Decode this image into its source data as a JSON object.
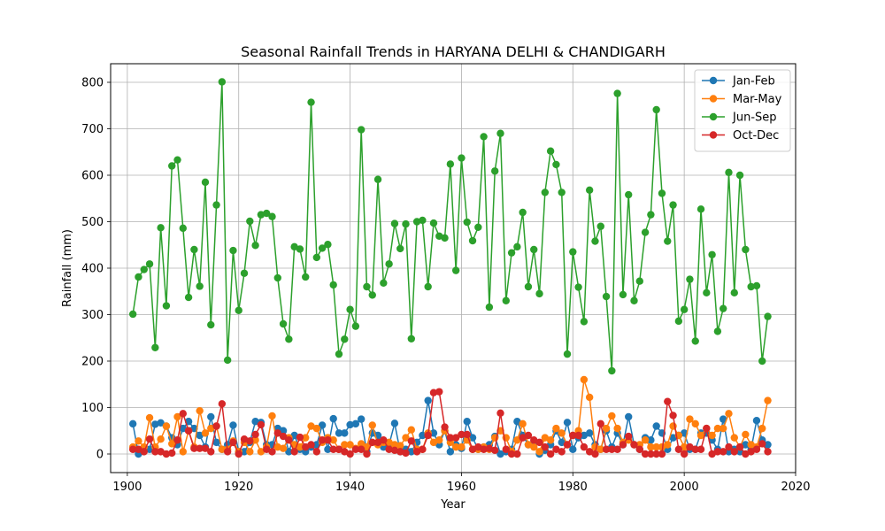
{
  "chart_data": {
    "type": "line",
    "title": "Seasonal Rainfall Trends in HARYANA DELHI & CHANDIGARH",
    "xlabel": "Year",
    "ylabel": "Rainfall (mm)",
    "xlim": [
      1897,
      2020
    ],
    "ylim": [
      -40,
      840
    ],
    "xticks": [
      1900,
      1920,
      1940,
      1960,
      1980,
      2000,
      2020
    ],
    "yticks": [
      0,
      100,
      200,
      300,
      400,
      500,
      600,
      700,
      800
    ],
    "grid": true,
    "legend_position": "top-right",
    "x": [
      1901,
      1902,
      1903,
      1904,
      1905,
      1906,
      1907,
      1908,
      1909,
      1910,
      1911,
      1912,
      1913,
      1914,
      1915,
      1916,
      1917,
      1918,
      1919,
      1920,
      1921,
      1922,
      1923,
      1924,
      1925,
      1926,
      1927,
      1928,
      1929,
      1930,
      1931,
      1932,
      1933,
      1934,
      1935,
      1936,
      1937,
      1938,
      1939,
      1940,
      1941,
      1942,
      1943,
      1944,
      1945,
      1946,
      1947,
      1948,
      1949,
      1950,
      1951,
      1952,
      1953,
      1954,
      1955,
      1956,
      1957,
      1958,
      1959,
      1960,
      1961,
      1962,
      1963,
      1964,
      1965,
      1966,
      1967,
      1968,
      1969,
      1970,
      1971,
      1972,
      1973,
      1974,
      1975,
      1976,
      1977,
      1978,
      1979,
      1980,
      1981,
      1982,
      1983,
      1984,
      1985,
      1986,
      1987,
      1988,
      1989,
      1990,
      1991,
      1992,
      1993,
      1994,
      1995,
      1996,
      1997,
      1998,
      1999,
      2000,
      2001,
      2002,
      2003,
      2004,
      2005,
      2006,
      2007,
      2008,
      2009,
      2010,
      2011,
      2012,
      2013,
      2014,
      2015
    ],
    "series": [
      {
        "name": "Jan-Feb",
        "color": "#1f77b4",
        "values": [
          65,
          0,
          10,
          10,
          64,
          67,
          60,
          35,
          20,
          55,
          70,
          55,
          40,
          15,
          80,
          25,
          10,
          20,
          62,
          5,
          5,
          25,
          70,
          68,
          20,
          20,
          55,
          50,
          5,
          40,
          10,
          5,
          15,
          20,
          62,
          10,
          76,
          45,
          45,
          63,
          65,
          75,
          5,
          45,
          40,
          15,
          20,
          66,
          5,
          10,
          5,
          25,
          40,
          115,
          45,
          20,
          50,
          5,
          20,
          12,
          70,
          35,
          10,
          15,
          20,
          38,
          0,
          5,
          10,
          70,
          40,
          20,
          25,
          0,
          8,
          20,
          50,
          25,
          68,
          10,
          35,
          40,
          45,
          20,
          10,
          50,
          15,
          45,
          20,
          80,
          20,
          10,
          35,
          30,
          60,
          45,
          10,
          35,
          40,
          45,
          10,
          10,
          45,
          45,
          30,
          10,
          75,
          5,
          10,
          5,
          20,
          10,
          72,
          30,
          20
        ]
      },
      {
        "name": "Mar-May",
        "color": "#ff7f0e",
        "values": [
          15,
          28,
          15,
          78,
          15,
          32,
          60,
          22,
          80,
          5,
          50,
          15,
          93,
          45,
          55,
          60,
          10,
          10,
          28,
          5,
          25,
          5,
          30,
          5,
          15,
          82,
          15,
          12,
          35,
          20,
          15,
          35,
          60,
          55,
          25,
          35,
          30,
          10,
          20,
          20,
          12,
          22,
          15,
          62,
          20,
          25,
          25,
          20,
          18,
          35,
          52,
          10,
          10,
          45,
          25,
          30,
          50,
          25,
          15,
          15,
          30,
          10,
          10,
          15,
          10,
          35,
          50,
          35,
          5,
          30,
          65,
          20,
          15,
          5,
          35,
          30,
          55,
          45,
          20,
          40,
          50,
          160,
          122,
          15,
          10,
          55,
          82,
          55,
          25,
          30,
          20,
          20,
          30,
          15,
          15,
          15,
          20,
          60,
          40,
          15,
          75,
          65,
          40,
          55,
          40,
          55,
          55,
          87,
          35,
          15,
          42,
          20,
          15,
          55,
          115
        ]
      },
      {
        "name": "Jun-Sep",
        "color": "#2ca02c",
        "values": [
          301,
          381,
          397,
          409,
          229,
          487,
          319,
          620,
          633,
          486,
          337,
          440,
          361,
          585,
          278,
          536,
          801,
          202,
          438,
          309,
          389,
          501,
          449,
          515,
          518,
          511,
          379,
          280,
          247,
          446,
          441,
          381,
          757,
          423,
          443,
          451,
          364,
          215,
          247,
          311,
          275,
          698,
          360,
          342,
          591,
          368,
          409,
          496,
          442,
          495,
          248,
          500,
          503,
          360,
          497,
          469,
          465,
          624,
          395,
          637,
          499,
          459,
          488,
          683,
          316,
          609,
          690,
          330,
          433,
          446,
          520,
          360,
          440,
          345,
          563,
          652,
          623,
          563,
          215,
          435,
          359,
          285,
          568,
          458,
          490,
          339,
          179,
          776,
          343,
          558,
          330,
          372,
          477,
          515,
          741,
          561,
          458,
          536,
          286,
          311,
          376,
          243,
          527,
          347,
          429,
          264,
          313,
          606,
          347,
          600,
          440,
          360,
          362,
          200,
          296
        ]
      },
      {
        "name": "Oct-Dec",
        "color": "#d62728",
        "values": [
          10,
          10,
          5,
          32,
          5,
          5,
          0,
          2,
          30,
          87,
          50,
          12,
          12,
          12,
          5,
          60,
          108,
          5,
          25,
          0,
          32,
          28,
          42,
          63,
          10,
          5,
          45,
          38,
          30,
          5,
          36,
          15,
          20,
          5,
          30,
          30,
          10,
          10,
          5,
          0,
          10,
          10,
          0,
          25,
          25,
          30,
          10,
          8,
          5,
          2,
          28,
          5,
          10,
          40,
          132,
          134,
          58,
          35,
          35,
          42,
          42,
          10,
          15,
          10,
          12,
          8,
          88,
          10,
          0,
          0,
          35,
          40,
          30,
          25,
          15,
          0,
          10,
          5,
          20,
          40,
          40,
          15,
          5,
          0,
          65,
          10,
          10,
          10,
          20,
          38,
          20,
          10,
          0,
          0,
          0,
          0,
          113,
          83,
          10,
          0,
          15,
          10,
          10,
          55,
          0,
          5,
          5,
          15,
          5,
          15,
          0,
          5,
          10,
          22,
          5
        ]
      }
    ]
  }
}
